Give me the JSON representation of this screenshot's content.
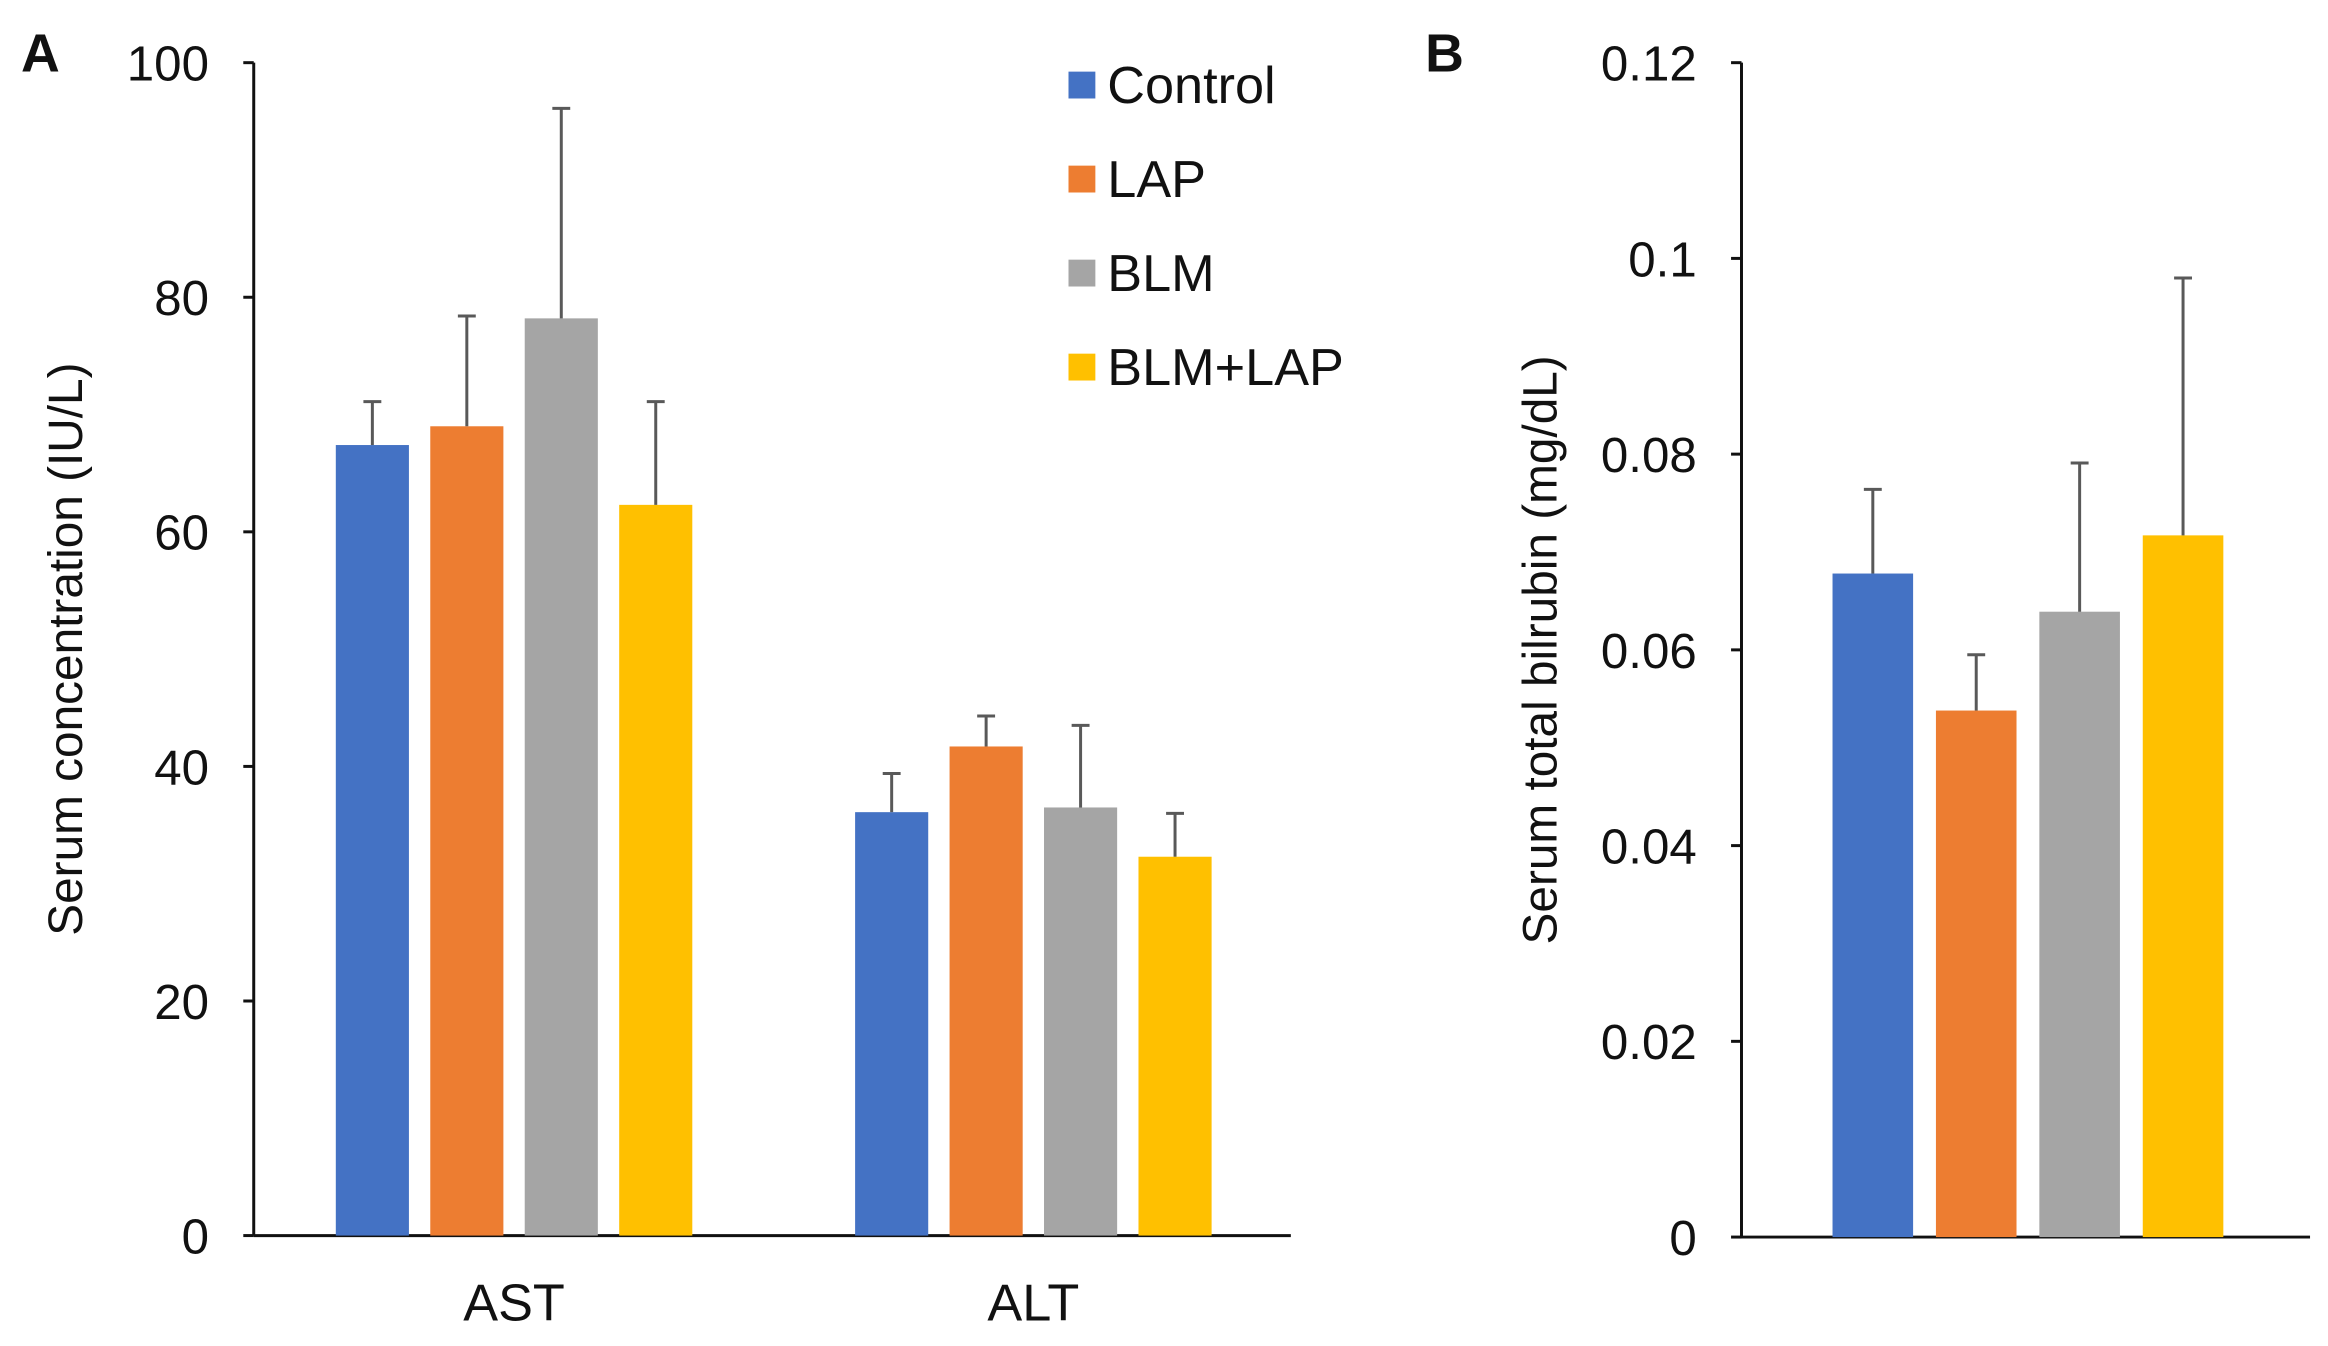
{
  "colors": {
    "Control": "#4472c4",
    "LAP": "#ed7d31",
    "BLM": "#a5a5a5",
    "BLM+LAP": "#ffc000",
    "axis": "#111111",
    "error": "#595959"
  },
  "chart_data": [
    {
      "panel": "A",
      "type": "bar",
      "ylabel": "Serum concentration (IU/L)",
      "xlabel": "",
      "ylim": [
        0,
        100
      ],
      "yticks": [
        "0",
        "20",
        "40",
        "60",
        "80",
        "100"
      ],
      "categories": [
        "AST",
        "ALT"
      ],
      "legend": {
        "placement": "top-right",
        "entries": [
          "Control",
          "LAP",
          "BLM",
          "BLM+LAP"
        ]
      },
      "series": [
        {
          "name": "Control",
          "values": [
            67.4,
            36.1
          ],
          "error": [
            3.7,
            3.3
          ]
        },
        {
          "name": "LAP",
          "values": [
            69.0,
            41.7
          ],
          "error": [
            9.4,
            2.6
          ]
        },
        {
          "name": "BLM",
          "values": [
            78.2,
            36.5
          ],
          "error": [
            17.9,
            7.0
          ]
        },
        {
          "name": "BLM+LAP",
          "values": [
            62.3,
            32.3
          ],
          "error": [
            8.8,
            3.7
          ]
        }
      ]
    },
    {
      "panel": "B",
      "type": "bar",
      "ylabel": "Serum total bilrubin (mg/dL)",
      "xlabel": "",
      "ylim": [
        0,
        0.12
      ],
      "yticks": [
        "0",
        "0.02",
        "0.04",
        "0.06",
        "0.08",
        "0.1",
        "0.12"
      ],
      "categories": [
        ""
      ],
      "series": [
        {
          "name": "Control",
          "values": [
            0.0678
          ],
          "error": [
            0.0086
          ]
        },
        {
          "name": "LAP",
          "values": [
            0.0538
          ],
          "error": [
            0.0057
          ]
        },
        {
          "name": "BLM",
          "values": [
            0.0639
          ],
          "error": [
            0.0152
          ]
        },
        {
          "name": "BLM+LAP",
          "values": [
            0.0717
          ],
          "error": [
            0.0263
          ]
        }
      ]
    }
  ]
}
